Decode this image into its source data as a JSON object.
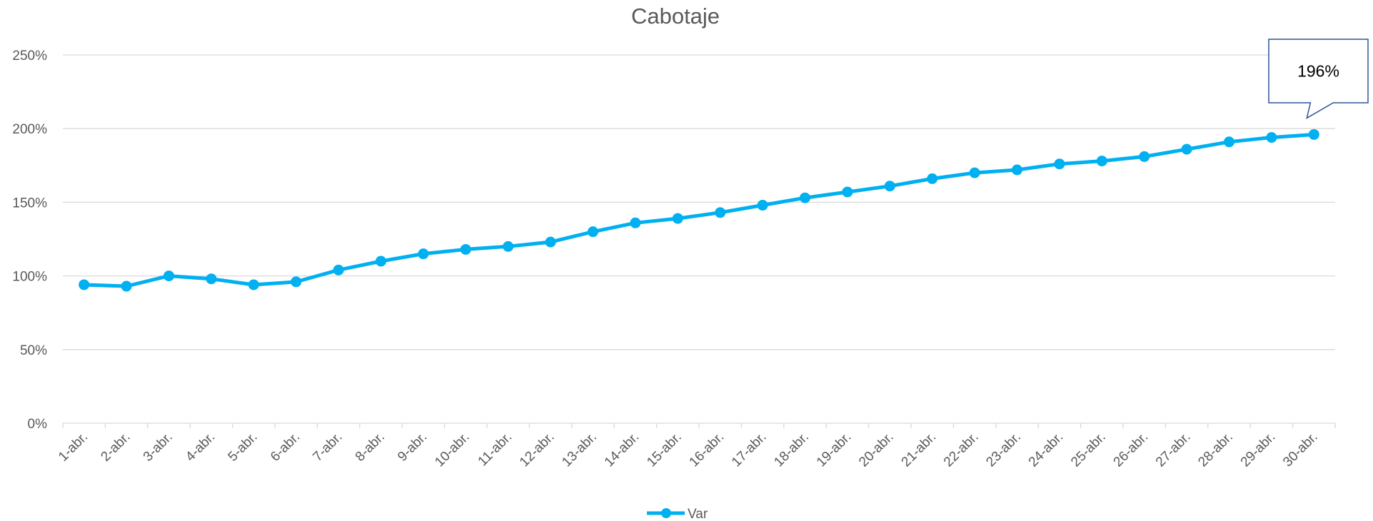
{
  "chart_data": {
    "type": "line",
    "title": "Cabotaje",
    "xlabel": "",
    "ylabel": "",
    "categories": [
      "1-abr.",
      "2-abr.",
      "3-abr.",
      "4-abr.",
      "5-abr.",
      "6-abr.",
      "7-abr.",
      "8-abr.",
      "9-abr.",
      "10-abr.",
      "11-abr.",
      "12-abr.",
      "13-abr.",
      "14-abr.",
      "15-abr.",
      "16-abr.",
      "17-abr.",
      "18-abr.",
      "19-abr.",
      "20-abr.",
      "21-abr.",
      "22-abr.",
      "23-abr.",
      "24-abr.",
      "25-abr.",
      "26-abr.",
      "27-abr.",
      "28-abr.",
      "29-abr.",
      "30-abr."
    ],
    "series": [
      {
        "name": "Var",
        "color": "#00b0f0",
        "values": [
          94,
          93,
          100,
          98,
          94,
          96,
          104,
          110,
          115,
          118,
          120,
          123,
          130,
          136,
          139,
          143,
          148,
          153,
          157,
          161,
          166,
          170,
          172,
          176,
          178,
          181,
          186,
          191,
          194,
          196
        ]
      }
    ],
    "ylim": [
      0,
      250
    ],
    "yticks": [
      "0%",
      "50%",
      "100%",
      "150%",
      "200%",
      "250%"
    ],
    "ytick_values": [
      0,
      50,
      100,
      150,
      200,
      250
    ],
    "grid": true,
    "legend_position": "bottom",
    "annotation": {
      "text": "196%",
      "category": "30-abr."
    }
  }
}
